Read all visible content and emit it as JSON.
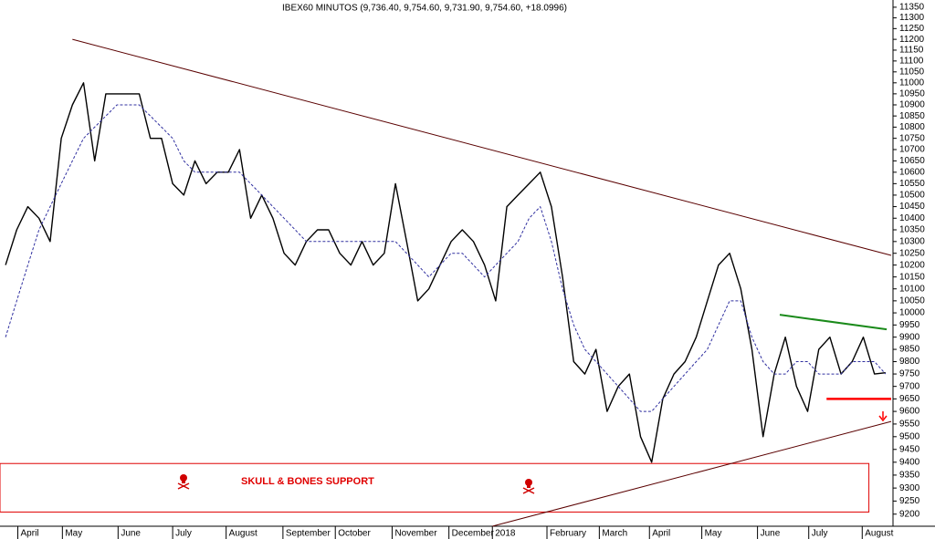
{
  "chart_data": {
    "type": "line",
    "title": "IBEX60 MINUTOS (9,736.40, 9,754.60, 9,731.90, 9,754.60, +18.0996)",
    "log": true,
    "xlim": [
      0,
      80
    ],
    "ylim": [
      9154,
      11384
    ],
    "yticks": [
      9200,
      9250,
      9300,
      9350,
      9400,
      9450,
      9500,
      9550,
      9600,
      9650,
      9700,
      9750,
      9800,
      9850,
      9900,
      9950,
      10000,
      10050,
      10100,
      10150,
      10200,
      10250,
      10300,
      10350,
      10400,
      10450,
      10500,
      10550,
      10600,
      10650,
      10700,
      10750,
      10800,
      10850,
      10900,
      10950,
      11000,
      11050,
      11100,
      11150,
      11200,
      11250,
      11300,
      11350
    ],
    "xticks": [
      {
        "value": 1.6,
        "label": "April"
      },
      {
        "value": 5.6,
        "label": "May"
      },
      {
        "value": 10.6,
        "label": "June"
      },
      {
        "value": 15.5,
        "label": "July"
      },
      {
        "value": 20.3,
        "label": "August"
      },
      {
        "value": 25.4,
        "label": "September"
      },
      {
        "value": 30.1,
        "label": "October"
      },
      {
        "value": 35.2,
        "label": "November"
      },
      {
        "value": 40.3,
        "label": "December"
      },
      {
        "value": 44.2,
        "label": "2018"
      },
      {
        "value": 49.1,
        "label": "February"
      },
      {
        "value": 53.8,
        "label": "March"
      },
      {
        "value": 58.3,
        "label": "April"
      },
      {
        "value": 63.0,
        "label": "May"
      },
      {
        "value": 68.0,
        "label": "June"
      },
      {
        "value": 72.6,
        "label": "July"
      },
      {
        "value": 77.4,
        "label": "August"
      }
    ],
    "series": [
      {
        "color": "#000000",
        "values": [
          10200,
          10350,
          10450,
          10400,
          10300,
          10750,
          10900,
          11000,
          10650,
          10950,
          10950,
          10950,
          10950,
          10750,
          10750,
          10550,
          10500,
          10650,
          10550,
          10600,
          10600,
          10700,
          10400,
          10500,
          10400,
          10250,
          10200,
          10300,
          10350,
          10350,
          10250,
          10200,
          10300,
          10200,
          10250,
          10550,
          10300,
          10050,
          10100,
          10200,
          10300,
          10350,
          10300,
          10200,
          10050,
          10450,
          10500,
          10550,
          10600,
          10450,
          10150,
          9800,
          9750,
          9850,
          9600,
          9700,
          9750,
          9500,
          9400,
          9650,
          9750,
          9800,
          9900,
          10050,
          10200,
          10250,
          10100,
          9850,
          9500,
          9750,
          9900,
          9700,
          9600,
          9850,
          9900,
          9750,
          9800,
          9900,
          9750,
          9755
        ]
      },
      {
        "color": "#3030a0",
        "dashed": true,
        "values": [
          9900,
          10050,
          10200,
          10350,
          10450,
          10550,
          10650,
          10750,
          10800,
          10850,
          10900,
          10900,
          10900,
          10850,
          10800,
          10750,
          10650,
          10600,
          10600,
          10600,
          10600,
          10600,
          10550,
          10500,
          10450,
          10400,
          10350,
          10300,
          10300,
          10300,
          10300,
          10300,
          10300,
          10300,
          10300,
          10300,
          10250,
          10200,
          10150,
          10200,
          10250,
          10250,
          10200,
          10150,
          10200,
          10250,
          10300,
          10400,
          10450,
          10300,
          10100,
          9950,
          9850,
          9800,
          9750,
          9700,
          9650,
          9600,
          9600,
          9650,
          9700,
          9750,
          9800,
          9850,
          9950,
          10050,
          10050,
          9900,
          9800,
          9750,
          9750,
          9800,
          9800,
          9750,
          9750,
          9750,
          9800,
          9800,
          9800,
          9750
        ]
      }
    ],
    "trendlines": [
      {
        "color": "#5a0000",
        "x": [
          6.5,
          80
        ],
        "y": [
          11200,
          10241
        ]
      },
      {
        "color": "#5a0000",
        "x": [
          44.2,
          80
        ],
        "y": [
          9154,
          9560
        ]
      },
      {
        "color": "#1a8a1a",
        "x": [
          70,
          79.6
        ],
        "y": [
          9992,
          9932
        ]
      },
      {
        "color": "#ff0000",
        "x": [
          74.2,
          80
        ],
        "y": [
          9650,
          9650
        ]
      }
    ],
    "support_zone": {
      "label": "SKULL & BONES SUPPORT",
      "color": "#e00000",
      "x": [
        0,
        78
      ],
      "y": [
        9208,
        9395
      ]
    }
  }
}
